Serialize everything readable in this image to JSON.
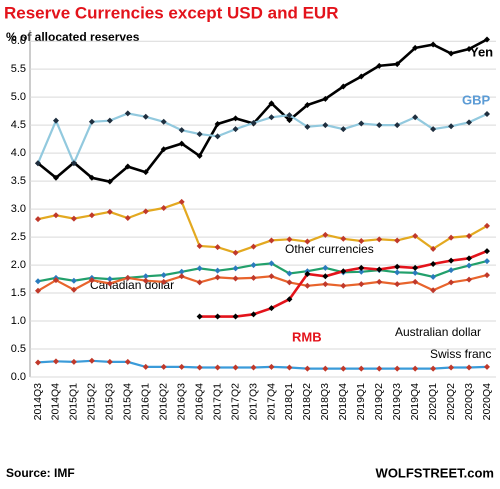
{
  "chart_data": {
    "type": "line",
    "title": "Reserve Currencies except USD and EUR",
    "subtitle": "% of allocated reserves",
    "source": "Source: IMF",
    "credit": "WOLFSTREET.com",
    "categories": [
      "2014Q3",
      "2014Q4",
      "2015Q1",
      "2015Q2",
      "2015Q3",
      "2015Q4",
      "2016Q1",
      "2016Q2",
      "2016Q3",
      "2016Q4",
      "2017Q1",
      "2017Q2",
      "2017Q3",
      "2017Q4",
      "2018Q1",
      "2018Q2",
      "2018Q3",
      "2018Q4",
      "2019Q1",
      "2019Q2",
      "2019Q3",
      "2019Q4",
      "2020Q1",
      "2020Q2",
      "2020Q3",
      "2020Q4"
    ],
    "ylim": [
      0,
      6.2
    ],
    "yticks": [
      {
        "value": 0,
        "label": "0.0"
      },
      0.5,
      {
        "value": 1,
        "label": "1.0"
      },
      1.5,
      {
        "value": 2,
        "label": "2.0"
      },
      2.5,
      {
        "value": 3,
        "label": "3.0"
      },
      3.5,
      {
        "value": 4,
        "label": "4.0"
      },
      4.5,
      {
        "value": 5,
        "label": "5.0"
      },
      5.5,
      {
        "value": 6,
        "label": "6.0"
      }
    ],
    "grid": true,
    "series": [
      {
        "name": "Yen",
        "color": "#000000",
        "marker_color": "#000000",
        "values": [
          3.82,
          3.56,
          3.83,
          3.56,
          3.49,
          3.76,
          3.66,
          4.07,
          4.17,
          3.95,
          4.52,
          4.62,
          4.53,
          4.89,
          4.59,
          4.86,
          4.97,
          5.19,
          5.37,
          5.56,
          5.59,
          5.88,
          5.94,
          5.78,
          5.86,
          6.03
        ]
      },
      {
        "name": "GBP",
        "color": "#92c9de",
        "marker_color": "#1f2f3f",
        "values": [
          3.82,
          4.58,
          3.82,
          4.56,
          4.58,
          4.71,
          4.65,
          4.56,
          4.41,
          4.34,
          4.3,
          4.43,
          4.54,
          4.64,
          4.68,
          4.47,
          4.5,
          4.43,
          4.53,
          4.5,
          4.5,
          4.64,
          4.43,
          4.48,
          4.55,
          4.7
        ]
      },
      {
        "name": "Other currencies",
        "color": "#e3a920",
        "marker_color": "#c0392b",
        "values": [
          2.82,
          2.89,
          2.83,
          2.89,
          2.95,
          2.84,
          2.96,
          3.02,
          3.13,
          2.34,
          2.32,
          2.22,
          2.33,
          2.44,
          2.46,
          2.42,
          2.54,
          2.47,
          2.43,
          2.46,
          2.44,
          2.52,
          2.29,
          2.49,
          2.52,
          2.7
        ]
      },
      {
        "name": "Canadian dollar",
        "color": "#22a06b",
        "marker_color": "#2b7bbd",
        "values": [
          1.71,
          1.77,
          1.72,
          1.77,
          1.75,
          1.77,
          1.8,
          1.82,
          1.88,
          1.94,
          1.9,
          1.94,
          2.0,
          2.03,
          1.85,
          1.89,
          1.95,
          1.87,
          1.88,
          1.91,
          1.87,
          1.86,
          1.79,
          1.91,
          1.99,
          2.07
        ]
      },
      {
        "name": "Australian dollar",
        "color": "#e8642c",
        "marker_color": "#c0392b",
        "values": [
          1.54,
          1.73,
          1.56,
          1.73,
          1.67,
          1.77,
          1.72,
          1.7,
          1.8,
          1.69,
          1.78,
          1.76,
          1.77,
          1.8,
          1.69,
          1.63,
          1.66,
          1.63,
          1.66,
          1.7,
          1.66,
          1.7,
          1.55,
          1.69,
          1.74,
          1.82
        ]
      },
      {
        "name": "RMB",
        "color": "#e3131b",
        "marker_color": "#000000",
        "values": [
          null,
          null,
          null,
          null,
          null,
          null,
          null,
          null,
          null,
          1.08,
          1.08,
          1.08,
          1.12,
          1.23,
          1.39,
          1.84,
          1.8,
          1.89,
          1.95,
          1.92,
          1.97,
          1.95,
          2.02,
          2.08,
          2.12,
          2.25
        ]
      },
      {
        "name": "Swiss franc",
        "color": "#3a9bd9",
        "marker_color": "#c0392b",
        "values": [
          0.26,
          0.28,
          0.27,
          0.29,
          0.27,
          0.27,
          0.18,
          0.18,
          0.18,
          0.17,
          0.17,
          0.17,
          0.17,
          0.18,
          0.17,
          0.15,
          0.15,
          0.15,
          0.15,
          0.15,
          0.15,
          0.15,
          0.15,
          0.17,
          0.17,
          0.18
        ]
      }
    ]
  }
}
